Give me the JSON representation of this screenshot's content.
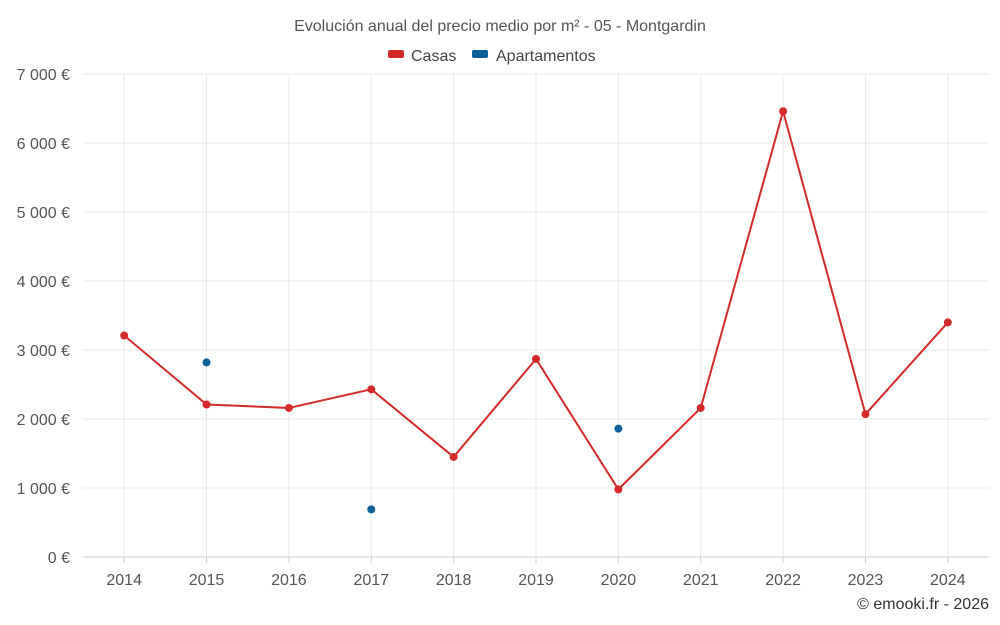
{
  "chart_data": {
    "type": "line",
    "title": "Evolución anual del precio medio por m² - 05 - Montgardin",
    "categories": [
      "2014",
      "2015",
      "2016",
      "2017",
      "2018",
      "2019",
      "2020",
      "2021",
      "2022",
      "2023",
      "2024"
    ],
    "ylim": [
      0,
      7000
    ],
    "yticks": [
      0,
      1000,
      2000,
      3000,
      4000,
      5000,
      6000,
      7000
    ],
    "ytick_labels": [
      "0 €",
      "1 000 €",
      "2 000 €",
      "3 000 €",
      "4 000 €",
      "5 000 €",
      "6 000 €",
      "7 000 €"
    ],
    "grid": true,
    "legend_position": "top-center",
    "series": [
      {
        "name": "Casas",
        "color": "#d42a2a",
        "style": "line",
        "values": [
          3210,
          2210,
          2160,
          2430,
          1450,
          2870,
          980,
          2160,
          6460,
          2070,
          3400
        ]
      },
      {
        "name": "Apartamentos",
        "color": "#0d5f99",
        "style": "points",
        "values": [
          null,
          2820,
          null,
          690,
          null,
          null,
          1860,
          null,
          null,
          null,
          null
        ]
      }
    ]
  },
  "credit": "© emooki.fr - 2026"
}
